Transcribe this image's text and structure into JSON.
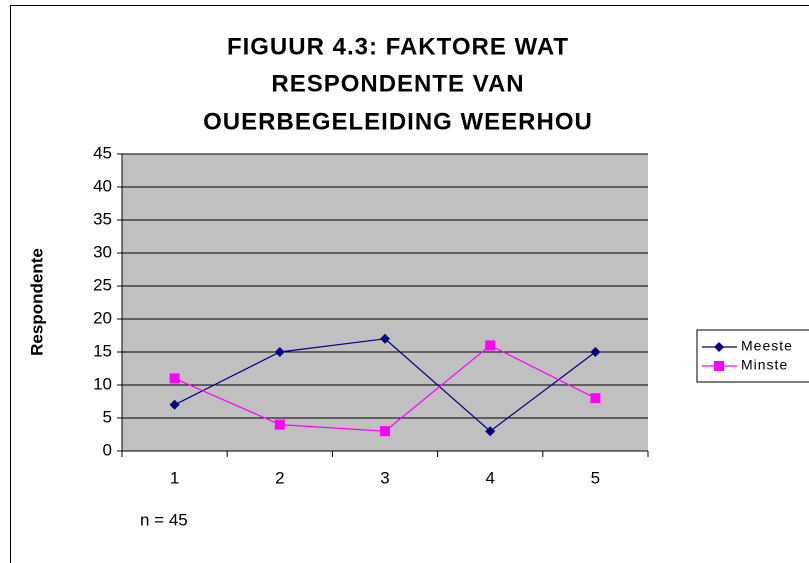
{
  "chart_data": {
    "type": "line",
    "title": [
      "FIGUUR 4.3: FAKTORE WAT",
      "RESPONDENTE VAN",
      "OUERBEGELEIDING WEERHOU"
    ],
    "y_label": "Respondente",
    "annotation": "n = 45",
    "categories": [
      "1",
      "2",
      "3",
      "4",
      "5"
    ],
    "series": [
      {
        "name": "Meeste",
        "color": "#000080",
        "marker": "diamond",
        "values": [
          7,
          15,
          17,
          3,
          15
        ]
      },
      {
        "name": "Minste",
        "color": "#ff00ff",
        "marker": "square",
        "values": [
          11,
          4,
          3,
          16,
          8
        ]
      }
    ],
    "ylim": [
      0,
      45
    ],
    "yticks": [
      0,
      5,
      10,
      15,
      20,
      25,
      30,
      35,
      40,
      45
    ],
    "grid": true,
    "legend": "right"
  }
}
